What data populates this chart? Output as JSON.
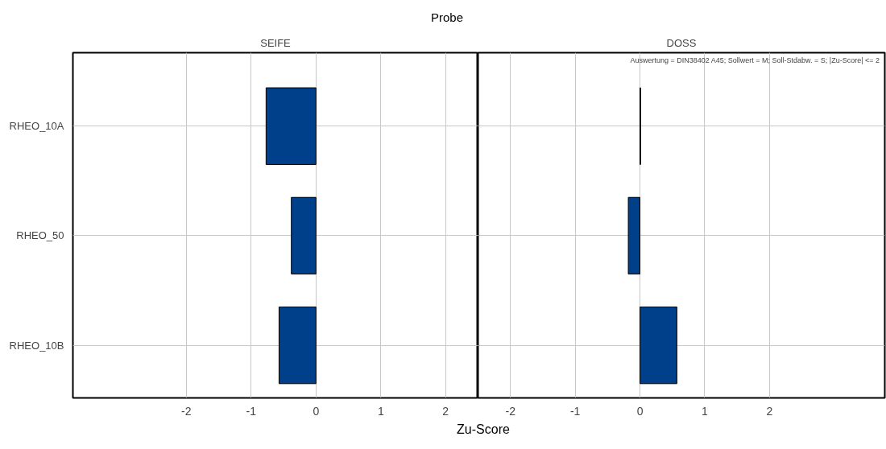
{
  "chart_data": [
    {
      "type": "bar",
      "orientation": "horizontal",
      "title": "Probe",
      "subtitle": "SEIFE",
      "xlabel": "Zu-Score",
      "categories": [
        "RHEO_10A",
        "RHEO_50",
        "RHEO_10B"
      ],
      "values": [
        -0.77,
        -0.38,
        -0.57
      ],
      "color": "#003f8a",
      "xlim": [
        -3.75,
        2.5
      ],
      "xticks": [
        -2,
        -1,
        0,
        1,
        2
      ],
      "grid": true
    },
    {
      "type": "bar",
      "orientation": "horizontal",
      "subtitle": "DOSS",
      "categories": [
        null,
        null,
        null
      ],
      "values": [
        0.01,
        -0.18,
        0.57
      ],
      "color": "#003f8a",
      "xlim": [
        -2.5,
        3.78
      ],
      "xticks": [
        -2,
        -1,
        0,
        1,
        2
      ],
      "grid": true,
      "tick_labels": "x",
      "annotations": [
        "Auswertung = DIN38402 A45; Sollwert = M; Soll-Stdabw. = S; |Zu-Score| <= 2"
      ]
    }
  ]
}
